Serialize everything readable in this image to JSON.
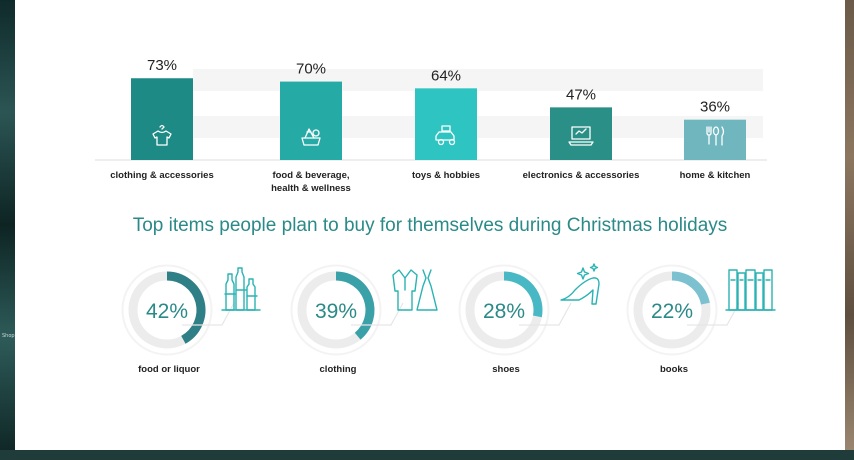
{
  "chart_data": [
    {
      "type": "bar",
      "categories": [
        "clothing & accessories",
        "food & beverage,\nhealth & wellness",
        "toys & hobbies",
        "electronics & accessories",
        "home & kitchen"
      ],
      "values": [
        73,
        70,
        64,
        47,
        36
      ],
      "value_labels": [
        "73%",
        "70%",
        "64%",
        "47%",
        "36%"
      ],
      "unit": "%",
      "ylim": [
        0,
        100
      ],
      "colors": [
        "#1e8a85",
        "#26aaa6",
        "#2ec4c1",
        "#2a8f86",
        "#6fb6bf"
      ],
      "icons": [
        "shirt-on-hanger-icon",
        "food-basket-icon",
        "toy-car-icon",
        "laptop-icon",
        "kitchen-utensils-icon"
      ]
    },
    {
      "type": "pie",
      "title": "Top items people plan to buy for themselves during Christmas holidays",
      "categories": [
        "food or liquor",
        "clothing",
        "shoes",
        "books"
      ],
      "values": [
        42,
        39,
        28,
        22
      ],
      "value_labels": [
        "42%",
        "39%",
        "28%",
        "22%"
      ],
      "unit": "%",
      "colors": [
        "#2e7f86",
        "#3aa1a8",
        "#48b8c4",
        "#7cc1cf"
      ],
      "icons": [
        "bottles-icon",
        "suit-and-dress-icon",
        "high-heel-shoe-icon",
        "books-icon"
      ]
    }
  ],
  "colors": {
    "accent": "#2a8a88",
    "ring_track": "#efefef",
    "text": "#222222"
  }
}
